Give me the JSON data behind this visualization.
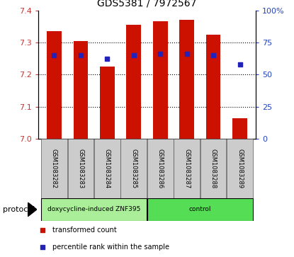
{
  "title": "GDS5381 / 7972567",
  "samples": [
    "GSM1083282",
    "GSM1083283",
    "GSM1083284",
    "GSM1083285",
    "GSM1083286",
    "GSM1083287",
    "GSM1083288",
    "GSM1083289"
  ],
  "bar_heights": [
    7.335,
    7.305,
    7.225,
    7.355,
    7.365,
    7.37,
    7.325,
    7.065
  ],
  "percentile_pct": [
    65,
    65,
    62,
    65,
    66,
    66,
    65,
    58
  ],
  "ylim_left": [
    7.0,
    7.4
  ],
  "ylim_right": [
    0,
    100
  ],
  "yticks_left": [
    7.0,
    7.1,
    7.2,
    7.3,
    7.4
  ],
  "yticks_right": [
    0,
    25,
    50,
    75,
    100
  ],
  "ytick_labels_right": [
    "0",
    "25",
    "50",
    "75",
    "100%"
  ],
  "bar_color": "#cc1100",
  "blue_color": "#2222bb",
  "bar_width": 0.55,
  "protocol_groups": [
    {
      "label": "doxycycline-induced ZNF395",
      "indices": [
        0,
        1,
        2,
        3
      ],
      "color": "#aaee99"
    },
    {
      "label": "control",
      "indices": [
        4,
        5,
        6,
        7
      ],
      "color": "#55dd55"
    }
  ],
  "legend_items": [
    {
      "label": "transformed count",
      "color": "#cc1100"
    },
    {
      "label": "percentile rank within the sample",
      "color": "#2222bb"
    }
  ],
  "protocol_label": "protocol",
  "tick_area_color": "#cccccc",
  "left_tick_color": "#cc3333",
  "right_tick_color": "#2244bb"
}
